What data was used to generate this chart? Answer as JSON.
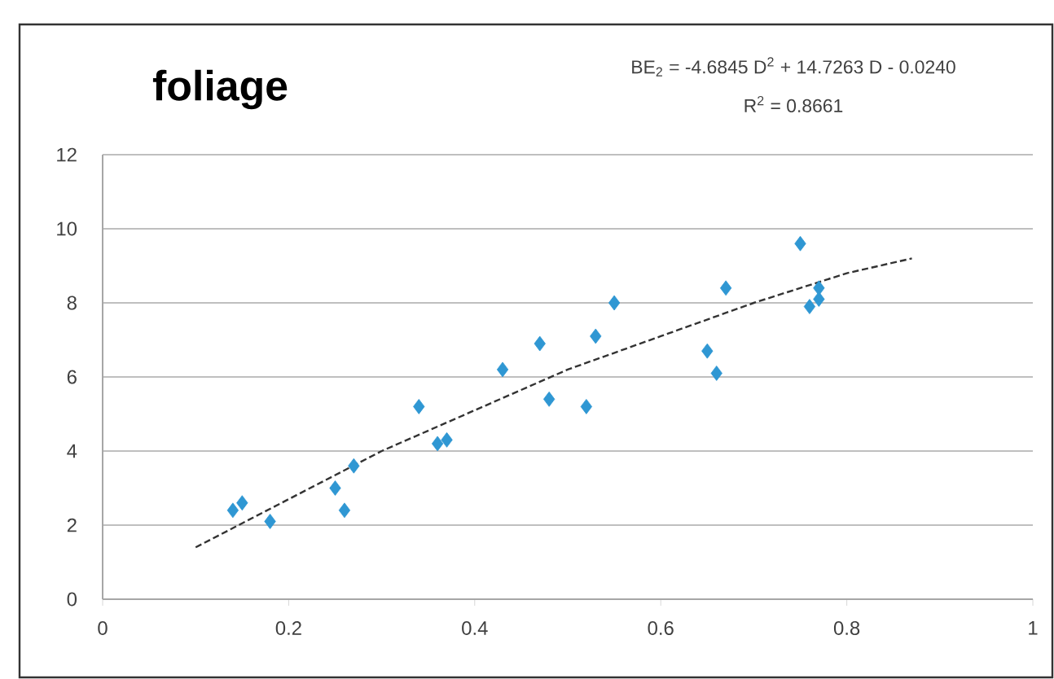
{
  "chart_data": {
    "type": "scatter",
    "title": "foliage",
    "annotations": [
      "BE$_{2}$ = -4.6845 D$^{2}$ + 14.7263 D - 0.0240",
      "R$^{2}$ = 0.8661"
    ],
    "series": [
      {
        "type": "scatter",
        "color": "#2f97d3",
        "marker": "diamond",
        "x": [
          0.14,
          0.15,
          0.18,
          0.25,
          0.26,
          0.27,
          0.34,
          0.36,
          0.37,
          0.43,
          0.47,
          0.48,
          0.52,
          0.53,
          0.55,
          0.65,
          0.66,
          0.67,
          0.75,
          0.76,
          0.77,
          0.77
        ],
        "values": [
          2.4,
          2.6,
          2.1,
          3.0,
          2.4,
          3.6,
          5.2,
          4.2,
          4.3,
          6.2,
          6.9,
          5.4,
          5.2,
          7.1,
          8.0,
          6.7,
          6.1,
          8.4,
          9.6,
          7.9,
          8.1,
          8.4
        ]
      },
      {
        "type": "line",
        "color": "#333333",
        "marker": "none",
        "line_style": "dashed",
        "x": [
          0.1,
          0.2,
          0.3,
          0.4,
          0.5,
          0.6,
          0.7,
          0.8,
          0.87
        ],
        "values": [
          1.4,
          2.7,
          4.0,
          5.1,
          6.2,
          7.1,
          8.0,
          8.8,
          9.2
        ]
      }
    ],
    "xlim": [
      0,
      1
    ],
    "ylim": [
      0,
      12
    ],
    "xticks": [
      0,
      0.2,
      0.4,
      0.6,
      0.8,
      1
    ],
    "yticks": [
      0,
      2,
      4,
      6,
      8,
      10,
      12
    ],
    "grid": "y"
  }
}
